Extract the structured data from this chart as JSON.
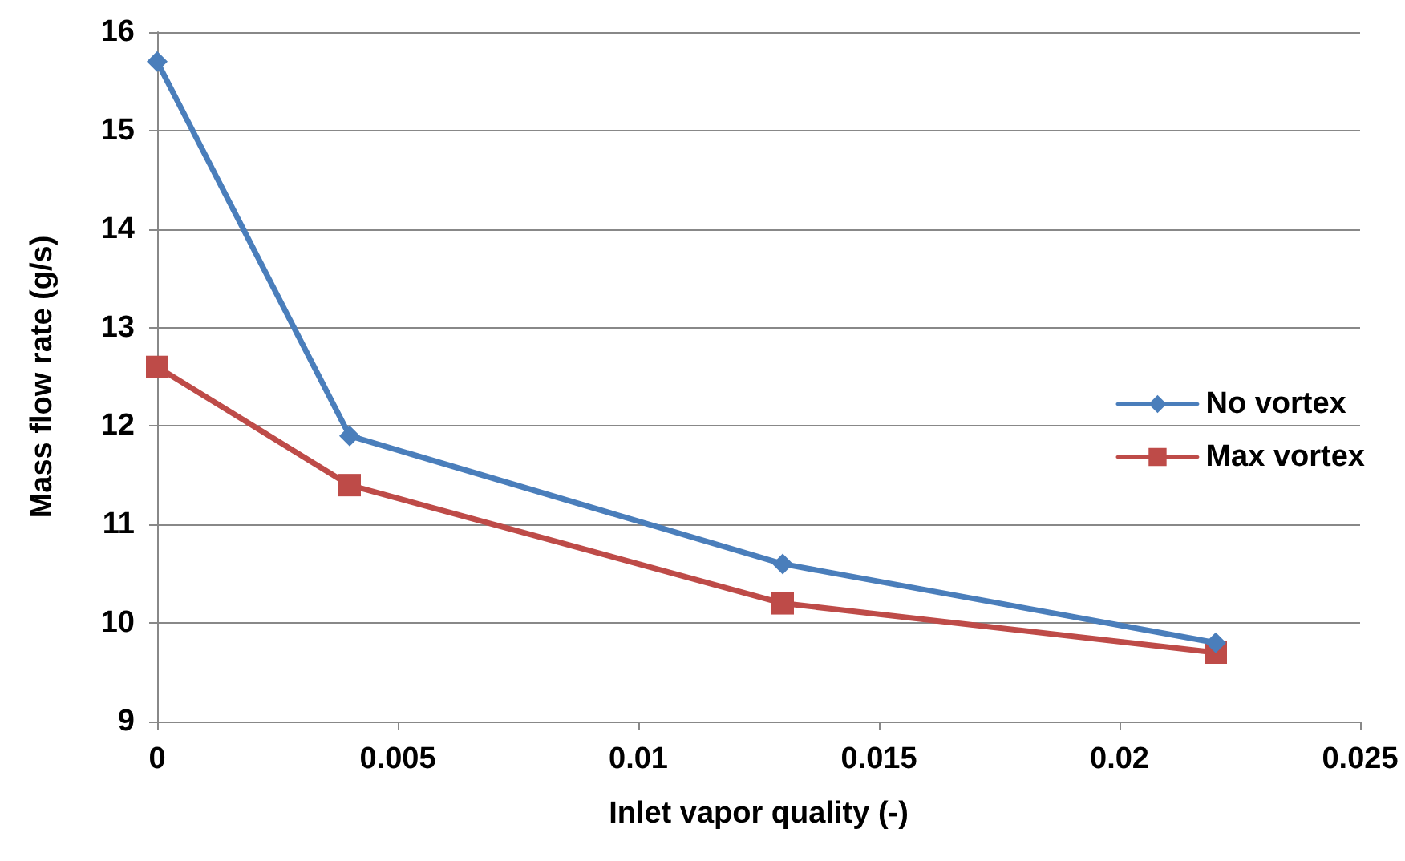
{
  "chart_data": {
    "type": "line",
    "xlabel": "Inlet vapor quality (-)",
    "ylabel": "Mass flow rate (g/s)",
    "x": [
      0,
      0.004,
      0.013,
      0.022
    ],
    "series": [
      {
        "name": "No vortex",
        "color": "#4a7ebb",
        "marker": "diamond",
        "values": [
          15.7,
          11.9,
          10.6,
          9.8
        ]
      },
      {
        "name": "Max vortex",
        "color": "#be4b48",
        "marker": "square",
        "values": [
          12.6,
          11.4,
          10.2,
          9.7
        ]
      }
    ],
    "xlim": [
      0,
      0.025
    ],
    "xticks": [
      0,
      0.005,
      0.01,
      0.015,
      0.02,
      0.025
    ],
    "ylim": [
      9,
      16
    ],
    "yticks": [
      9,
      10,
      11,
      12,
      13,
      14,
      15,
      16
    ],
    "grid": "y",
    "legend": "right",
    "line_style": "solid"
  }
}
